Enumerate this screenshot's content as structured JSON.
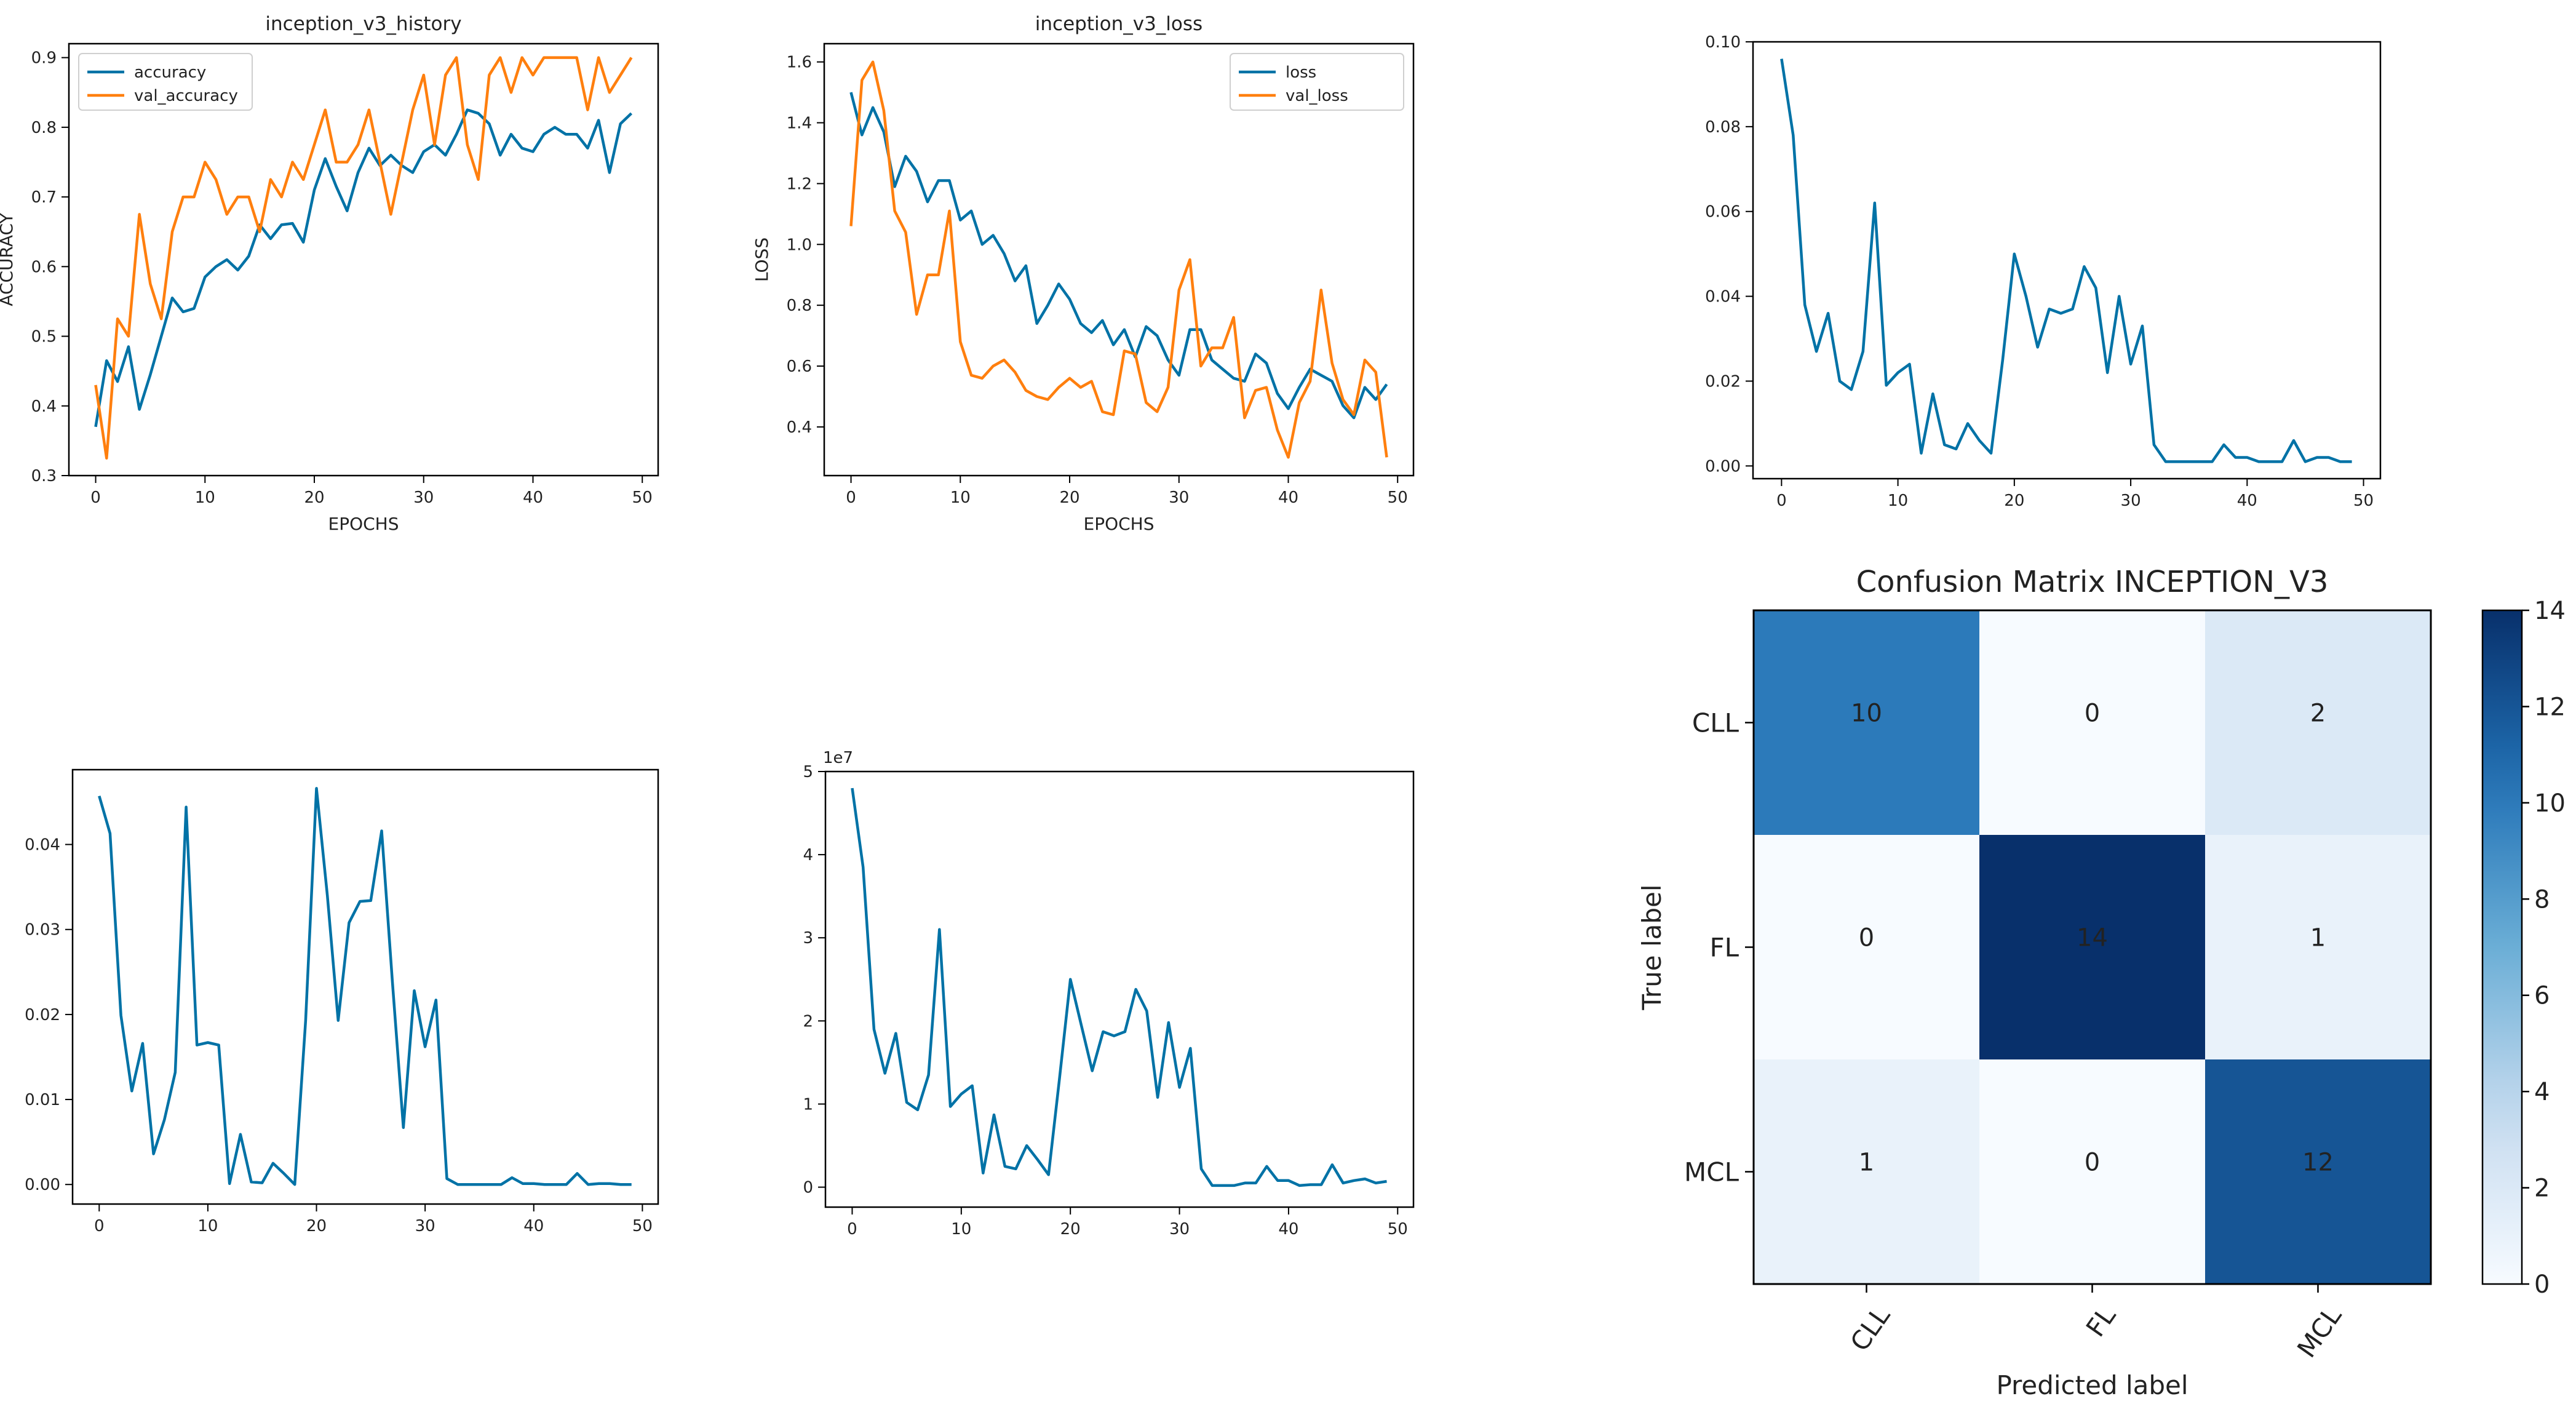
{
  "chart_data": [
    {
      "type": "line",
      "title": "inception_v3_history",
      "xlabel": "EPOCHS",
      "ylabel": "ACCURACY",
      "xlim": [
        -2.45,
        51.45
      ],
      "ylim": [
        0.3,
        0.92
      ],
      "xticks": [
        0,
        10,
        20,
        30,
        40,
        50
      ],
      "yticks": [
        0.3,
        0.4,
        0.5,
        0.6,
        0.7,
        0.8,
        0.9
      ],
      "ytick_labels": [
        "0.3",
        "0.4",
        "0.5",
        "0.6",
        "0.7",
        "0.8",
        "0.9"
      ],
      "legend_position": "upper-left",
      "series": [
        {
          "name": "accuracy",
          "color": "#0072a6",
          "values": [
            0.37,
            0.465,
            0.435,
            0.485,
            0.395,
            0.445,
            0.5,
            0.555,
            0.535,
            0.54,
            0.585,
            0.6,
            0.61,
            0.595,
            0.615,
            0.66,
            0.64,
            0.66,
            0.662,
            0.635,
            0.71,
            0.755,
            0.715,
            0.68,
            0.735,
            0.77,
            0.745,
            0.76,
            0.745,
            0.735,
            0.765,
            0.775,
            0.76,
            0.79,
            0.825,
            0.82,
            0.805,
            0.76,
            0.79,
            0.77,
            0.765,
            0.79,
            0.8,
            0.79,
            0.79,
            0.77,
            0.81,
            0.735,
            0.805,
            0.82
          ]
        },
        {
          "name": "val_accuracy",
          "color": "#ff7f0e",
          "values": [
            0.43,
            0.325,
            0.525,
            0.5,
            0.675,
            0.575,
            0.525,
            0.65,
            0.7,
            0.7,
            0.75,
            0.725,
            0.675,
            0.7,
            0.7,
            0.65,
            0.725,
            0.7,
            0.75,
            0.725,
            0.775,
            0.825,
            0.75,
            0.75,
            0.775,
            0.825,
            0.75,
            0.675,
            0.75,
            0.825,
            0.875,
            0.775,
            0.875,
            0.9,
            0.775,
            0.725,
            0.875,
            0.9,
            0.85,
            0.9,
            0.875,
            0.9,
            0.9,
            0.9,
            0.9,
            0.825,
            0.9,
            0.85,
            0.875,
            0.9
          ]
        }
      ]
    },
    {
      "type": "line",
      "title": "inception_v3_loss",
      "xlabel": "EPOCHS",
      "ylabel": "LOSS",
      "xlim": [
        -2.45,
        51.45
      ],
      "ylim": [
        0.24,
        1.66
      ],
      "xticks": [
        0,
        10,
        20,
        30,
        40,
        50
      ],
      "yticks": [
        0.4,
        0.6,
        0.8,
        1.0,
        1.2,
        1.4,
        1.6
      ],
      "ytick_labels": [
        "0.4",
        "0.6",
        "0.8",
        "1.0",
        "1.2",
        "1.4",
        "1.6"
      ],
      "legend_position": "upper-right",
      "series": [
        {
          "name": "loss",
          "color": "#0072a6",
          "values": [
            1.5,
            1.36,
            1.45,
            1.37,
            1.19,
            1.29,
            1.24,
            1.14,
            1.21,
            1.21,
            1.08,
            1.11,
            1.0,
            1.03,
            0.97,
            0.88,
            0.93,
            0.74,
            0.8,
            0.87,
            0.82,
            0.74,
            0.71,
            0.75,
            0.67,
            0.72,
            0.63,
            0.73,
            0.7,
            0.62,
            0.57,
            0.72,
            0.72,
            0.62,
            0.59,
            0.56,
            0.55,
            0.64,
            0.61,
            0.51,
            0.46,
            0.53,
            0.59,
            0.57,
            0.55,
            0.47,
            0.43,
            0.53,
            0.49,
            0.54
          ]
        },
        {
          "name": "val_loss",
          "color": "#ff7f0e",
          "values": [
            1.06,
            1.54,
            1.6,
            1.44,
            1.11,
            1.04,
            0.77,
            0.9,
            0.9,
            1.11,
            0.68,
            0.57,
            0.56,
            0.6,
            0.62,
            0.58,
            0.52,
            0.5,
            0.49,
            0.53,
            0.56,
            0.53,
            0.55,
            0.45,
            0.44,
            0.65,
            0.64,
            0.48,
            0.45,
            0.53,
            0.85,
            0.95,
            0.6,
            0.66,
            0.66,
            0.76,
            0.43,
            0.52,
            0.53,
            0.39,
            0.3,
            0.48,
            0.55,
            0.85,
            0.61,
            0.49,
            0.44,
            0.62,
            0.58,
            0.3
          ]
        }
      ]
    },
    {
      "type": "line",
      "title": "",
      "xlabel": "",
      "ylabel": "",
      "xlim": [
        -2.45,
        51.45
      ],
      "ylim": [
        -0.003,
        0.1
      ],
      "xticks": [
        0,
        10,
        20,
        30,
        40,
        50
      ],
      "yticks": [
        0.0,
        0.02,
        0.04,
        0.06,
        0.08,
        0.1
      ],
      "ytick_labels": [
        "0.00",
        "0.02",
        "0.04",
        "0.06",
        "0.08",
        "0.10"
      ],
      "series": [
        {
          "name": "",
          "color": "#0072a6",
          "values": [
            0.096,
            0.078,
            0.038,
            0.027,
            0.036,
            0.02,
            0.018,
            0.027,
            0.062,
            0.019,
            0.022,
            0.024,
            0.003,
            0.017,
            0.005,
            0.004,
            0.01,
            0.006,
            0.003,
            0.025,
            0.05,
            0.04,
            0.028,
            0.037,
            0.036,
            0.037,
            0.047,
            0.042,
            0.022,
            0.04,
            0.024,
            0.033,
            0.005,
            0.001,
            0.001,
            0.001,
            0.001,
            0.001,
            0.005,
            0.002,
            0.002,
            0.001,
            0.001,
            0.001,
            0.006,
            0.001,
            0.002,
            0.002,
            0.001,
            0.001
          ]
        }
      ]
    },
    {
      "type": "line",
      "title": "",
      "xlabel": "",
      "ylabel": "",
      "xlim": [
        -2.45,
        51.45
      ],
      "ylim": [
        -0.0023,
        0.0488
      ],
      "xticks": [
        0,
        10,
        20,
        30,
        40,
        50
      ],
      "yticks": [
        0.0,
        0.01,
        0.02,
        0.03,
        0.04
      ],
      "ytick_labels": [
        "0.00",
        "0.01",
        "0.02",
        "0.03",
        "0.04"
      ],
      "series": [
        {
          "name": "",
          "color": "#0072a6",
          "values": [
            0.0457,
            0.0413,
            0.0199,
            0.011,
            0.0166,
            0.0036,
            0.0076,
            0.0132,
            0.0444,
            0.0164,
            0.0167,
            0.0164,
            0.0001,
            0.0059,
            0.0003,
            0.0002,
            0.0025,
            0.0013,
            0.0,
            0.0193,
            0.0466,
            0.034,
            0.0193,
            0.0308,
            0.0333,
            0.0334,
            0.0416,
            0.0236,
            0.0067,
            0.0228,
            0.0162,
            0.0217,
            0.0007,
            0.0,
            0.0,
            0.0,
            0.0,
            0.0,
            0.0008,
            0.0001,
            0.0001,
            0.0,
            0.0,
            0.0,
            0.0013,
            0.0,
            0.0001,
            0.0001,
            0.0,
            0.0
          ]
        }
      ]
    },
    {
      "type": "line",
      "title": "",
      "xlabel": "",
      "ylabel": "",
      "offset_label": "1e7",
      "xlim": [
        -2.45,
        51.45
      ],
      "ylim": [
        -0.24,
        5.0
      ],
      "xticks": [
        0,
        10,
        20,
        30,
        40,
        50
      ],
      "yticks": [
        0,
        1,
        2,
        3,
        4,
        5
      ],
      "ytick_labels": [
        "0",
        "1",
        "2",
        "3",
        "4",
        "5"
      ],
      "series": [
        {
          "name": "",
          "color": "#0072a6",
          "values": [
            4.8,
            3.85,
            1.9,
            1.37,
            1.85,
            1.02,
            0.93,
            1.35,
            3.1,
            0.97,
            1.12,
            1.22,
            0.17,
            0.87,
            0.25,
            0.22,
            0.5,
            0.33,
            0.15,
            1.3,
            2.5,
            1.95,
            1.4,
            1.87,
            1.82,
            1.87,
            2.38,
            2.12,
            1.08,
            1.98,
            1.2,
            1.67,
            0.22,
            0.02,
            0.02,
            0.02,
            0.05,
            0.05,
            0.25,
            0.08,
            0.08,
            0.02,
            0.03,
            0.03,
            0.27,
            0.05,
            0.08,
            0.1,
            0.05,
            0.07
          ]
        }
      ]
    },
    {
      "type": "heatmap",
      "title": "Confusion Matrix INCEPTION_V3",
      "xlabel": "Predicted label",
      "ylabel": "True label",
      "classes": [
        "CLL",
        "FL",
        "MCL"
      ],
      "matrix": [
        [
          10,
          0,
          2
        ],
        [
          0,
          14,
          1
        ],
        [
          1,
          0,
          12
        ]
      ],
      "colorbar": {
        "min": 0,
        "max": 14,
        "ticks": [
          0,
          2,
          4,
          6,
          8,
          10,
          12,
          14
        ],
        "tick_labels": [
          "0",
          "2",
          "4",
          "6",
          "8",
          "10",
          "12",
          "14"
        ]
      },
      "colormap": "Blues"
    }
  ]
}
